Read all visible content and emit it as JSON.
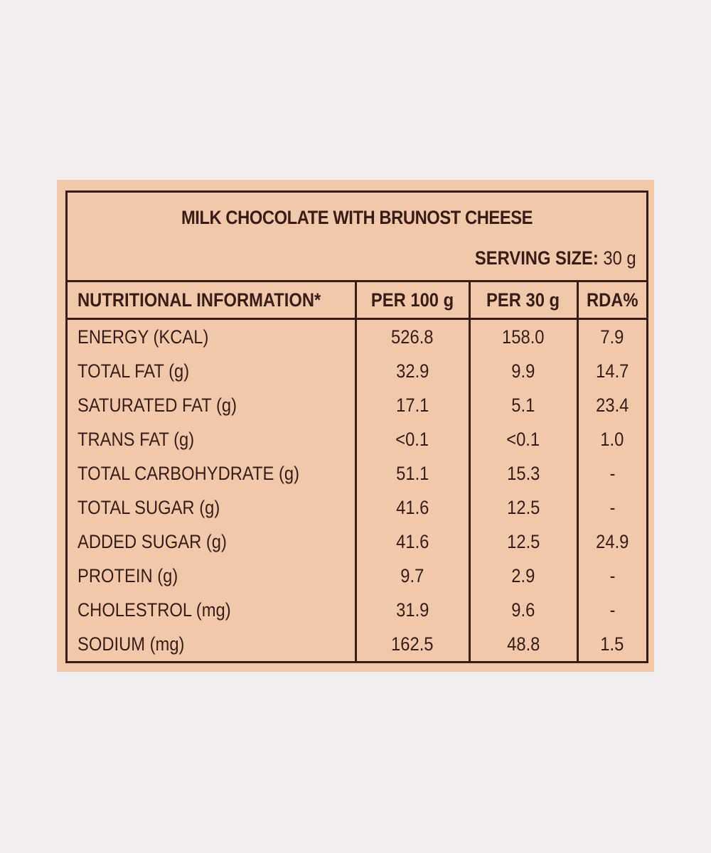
{
  "label": {
    "title": "MILK CHOCOLATE WITH BRUNOST CHEESE",
    "serving_size": {
      "label": "SERVING SIZE:",
      "value": "30 g"
    },
    "table": {
      "header": [
        "NUTRITIONAL INFORMATION*",
        "PER 100 g",
        "PER 30 g",
        "RDA%"
      ],
      "rows": [
        [
          "ENERGY (KCAL)",
          "526.8",
          "158.0",
          "7.9"
        ],
        [
          "TOTAL FAT (g)",
          "32.9",
          "9.9",
          "14.7"
        ],
        [
          "SATURATED FAT (g)",
          "17.1",
          "5.1",
          "23.4"
        ],
        [
          "TRANS FAT (g)",
          "<0.1",
          "<0.1",
          "1.0"
        ],
        [
          "TOTAL CARBOHYDRATE (g)",
          "51.1",
          "15.3",
          "-"
        ],
        [
          "TOTAL SUGAR (g)",
          "41.6",
          "12.5",
          "-"
        ],
        [
          "ADDED SUGAR (g)",
          "41.6",
          "12.5",
          "24.9"
        ],
        [
          "PROTEIN (g)",
          "9.7",
          "2.9",
          "-"
        ],
        [
          "CHOLESTROL (mg)",
          "31.9",
          "9.6",
          "-"
        ],
        [
          "SODIUM (mg)",
          "162.5",
          "48.8",
          "1.5"
        ]
      ]
    }
  }
}
